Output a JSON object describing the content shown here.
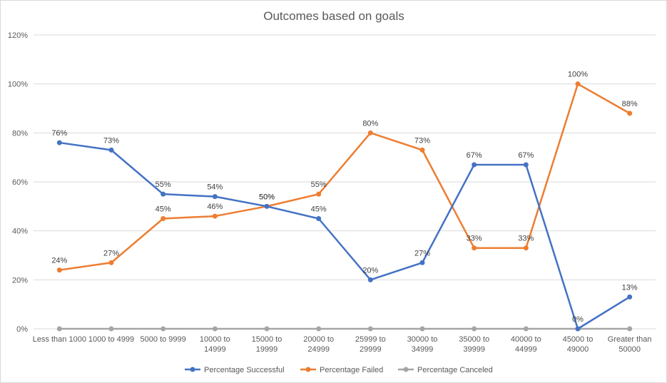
{
  "chart_data": {
    "type": "line",
    "title": "Outcomes based on goals",
    "xlabel": "",
    "ylabel": "",
    "ylim": [
      0,
      120
    ],
    "y_ticks": [
      "0%",
      "20%",
      "40%",
      "60%",
      "80%",
      "100%",
      "120%"
    ],
    "grid": true,
    "legend_position": "bottom",
    "categories": [
      [
        "Less than 1000"
      ],
      [
        "1000 to 4999"
      ],
      [
        "5000 to 9999"
      ],
      [
        "10000 to",
        "14999"
      ],
      [
        "15000 to",
        "19999"
      ],
      [
        "20000 to",
        "24999"
      ],
      [
        "25999 to",
        "29999"
      ],
      [
        "30000 to",
        "34999"
      ],
      [
        "35000 to",
        "39999"
      ],
      [
        "40000 to",
        "44999"
      ],
      [
        "45000 to",
        "49000"
      ],
      [
        "Greater than",
        "50000"
      ]
    ],
    "series": [
      {
        "name": "Percentage Successful",
        "color": "#4472c4",
        "values": [
          76,
          73,
          55,
          54,
          50,
          45,
          20,
          27,
          67,
          67,
          0,
          13
        ],
        "labels": [
          "76%",
          "73%",
          "55%",
          "54%",
          "50%",
          "45%",
          "20%",
          "27%",
          "67%",
          "67%",
          "0%",
          "13%"
        ]
      },
      {
        "name": "Percentage Failed",
        "color": "#ed7d31",
        "values": [
          24,
          27,
          45,
          46,
          50,
          55,
          80,
          73,
          33,
          33,
          100,
          88
        ],
        "labels": [
          "24%",
          "27%",
          "45%",
          "46%",
          "50%",
          "55%",
          "80%",
          "73%",
          "33%",
          "33%",
          "100%",
          "88%"
        ]
      },
      {
        "name": "Percentage Canceled",
        "color": "#a5a5a5",
        "values": [
          0,
          0,
          0,
          0,
          0,
          0,
          0,
          0,
          0,
          0,
          0,
          0
        ],
        "labels": []
      }
    ]
  }
}
